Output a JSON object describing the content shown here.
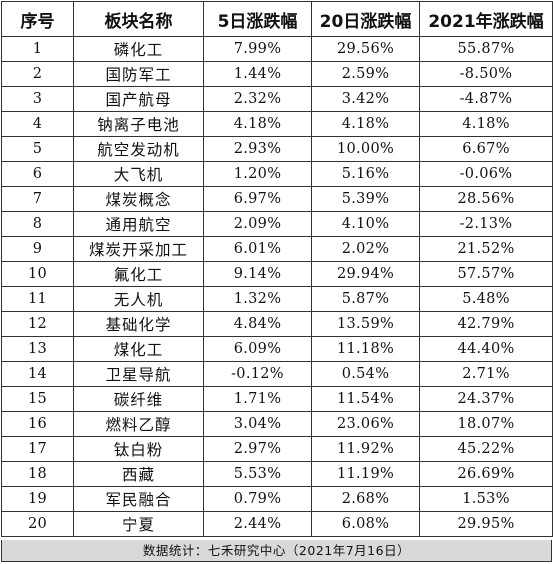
{
  "table": {
    "headers": [
      "序号",
      "板块名称",
      "5日涨跌幅",
      "20日涨跌幅",
      "2021年涨跌幅"
    ],
    "rows": [
      [
        "1",
        "磷化工",
        "7.99%",
        "29.56%",
        "55.87%"
      ],
      [
        "2",
        "国防军工",
        "1.44%",
        "2.59%",
        "-8.50%"
      ],
      [
        "3",
        "国产航母",
        "2.32%",
        "3.42%",
        "-4.87%"
      ],
      [
        "4",
        "钠离子电池",
        "4.18%",
        "4.18%",
        "4.18%"
      ],
      [
        "5",
        "航空发动机",
        "2.93%",
        "10.00%",
        "6.67%"
      ],
      [
        "6",
        "大飞机",
        "1.20%",
        "5.16%",
        "-0.06%"
      ],
      [
        "7",
        "煤炭概念",
        "6.97%",
        "5.39%",
        "28.56%"
      ],
      [
        "8",
        "通用航空",
        "2.09%",
        "4.10%",
        "-2.13%"
      ],
      [
        "9",
        "煤炭开采加工",
        "6.01%",
        "2.02%",
        "21.52%"
      ],
      [
        "10",
        "氟化工",
        "9.14%",
        "29.94%",
        "57.57%"
      ],
      [
        "11",
        "无人机",
        "1.32%",
        "5.87%",
        "5.48%"
      ],
      [
        "12",
        "基础化学",
        "4.84%",
        "13.59%",
        "42.79%"
      ],
      [
        "13",
        "煤化工",
        "6.09%",
        "11.18%",
        "44.40%"
      ],
      [
        "14",
        "卫星导航",
        "-0.12%",
        "0.54%",
        "2.71%"
      ],
      [
        "15",
        "碳纤维",
        "1.71%",
        "11.54%",
        "24.37%"
      ],
      [
        "16",
        "燃料乙醇",
        "3.04%",
        "23.06%",
        "18.07%"
      ],
      [
        "17",
        "钛白粉",
        "2.97%",
        "11.92%",
        "45.22%"
      ],
      [
        "18",
        "西藏",
        "5.53%",
        "11.19%",
        "26.69%"
      ],
      [
        "19",
        "军民融合",
        "0.79%",
        "2.68%",
        "1.53%"
      ],
      [
        "20",
        "宁夏",
        "2.44%",
        "6.08%",
        "29.95%"
      ]
    ]
  },
  "footer": {
    "text": "数据统计：七禾研究中心（2021年7月16日）"
  }
}
